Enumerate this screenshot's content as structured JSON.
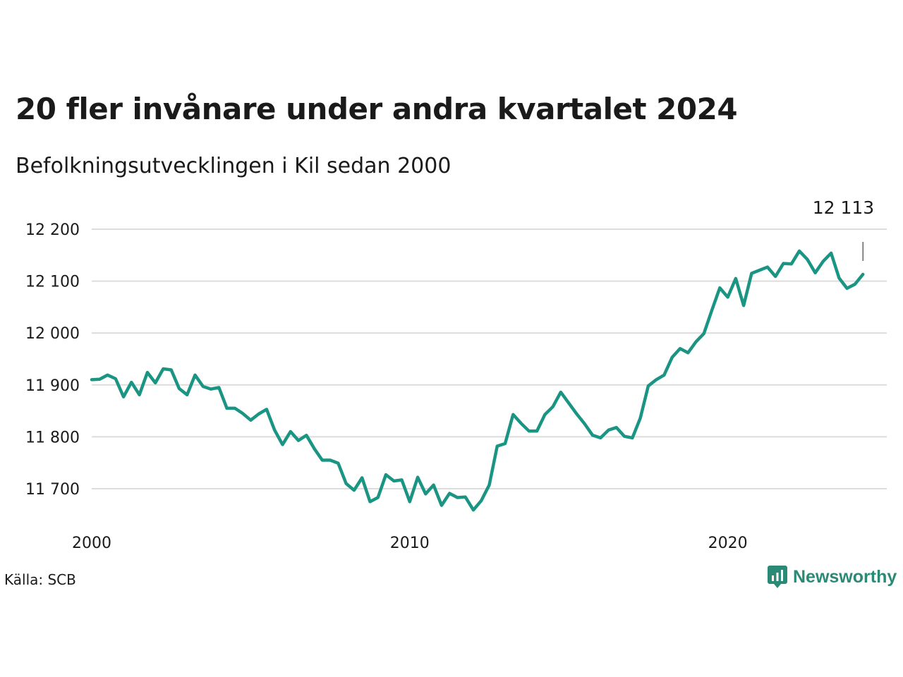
{
  "header": {
    "title": "20 fler invånare under andra kvartalet 2024",
    "subtitle": "Befolkningsutvecklingen i Kil sedan 2000"
  },
  "footer": {
    "source": "Källa: SCB",
    "brand": "Newsworthy"
  },
  "colors": {
    "line": "#1a9483",
    "grid": "#dcdcdc",
    "text": "#1a1a1a",
    "brand": "#2a8a76"
  },
  "chart_data": {
    "type": "line",
    "title": "20 fler invånare under andra kvartalet 2024",
    "subtitle": "Befolkningsutvecklingen i Kil sedan 2000",
    "xlabel": "",
    "ylabel": "",
    "x_start": 2000,
    "x_step": 0.25,
    "xlim": [
      2000,
      2025
    ],
    "ylim": [
      11630,
      12235
    ],
    "yticks": [
      11700,
      11800,
      11900,
      12000,
      12100,
      12200
    ],
    "ytick_labels": [
      "11 700",
      "11 800",
      "11 900",
      "12 000",
      "12 100",
      "12 200"
    ],
    "xticks": [
      2000,
      2010,
      2020
    ],
    "xtick_labels": [
      "2000",
      "2010",
      "2020"
    ],
    "grid": true,
    "last_value_label": "12 113",
    "series": [
      {
        "values": [
          11910,
          11911,
          11919,
          11912,
          11877,
          11905,
          11881,
          11924,
          11904,
          11931,
          11929,
          11893,
          11881,
          11919,
          11897,
          11892,
          11895,
          11855,
          11855,
          11845,
          11832,
          11844,
          11853,
          11813,
          11785,
          11810,
          11793,
          11803,
          11777,
          11755,
          11755,
          11749,
          11710,
          11697,
          11721,
          11675,
          11683,
          11727,
          11715,
          11717,
          11675,
          11722,
          11690,
          11707,
          11668,
          11691,
          11683,
          11684,
          11659,
          11677,
          11707,
          11782,
          11787,
          11843,
          11826,
          11811,
          11811,
          11843,
          11858,
          11886,
          11865,
          11844,
          11825,
          11803,
          11798,
          11813,
          11818,
          11801,
          11798,
          11836,
          11898,
          11910,
          11919,
          11953,
          11970,
          11962,
          11983,
          11999,
          12044,
          12087,
          12069,
          12105,
          12053,
          12115,
          12121,
          12127,
          12109,
          12134,
          12133,
          12158,
          12142,
          12116,
          12138,
          12154,
          12106,
          12086,
          12094,
          12113
        ]
      }
    ]
  }
}
